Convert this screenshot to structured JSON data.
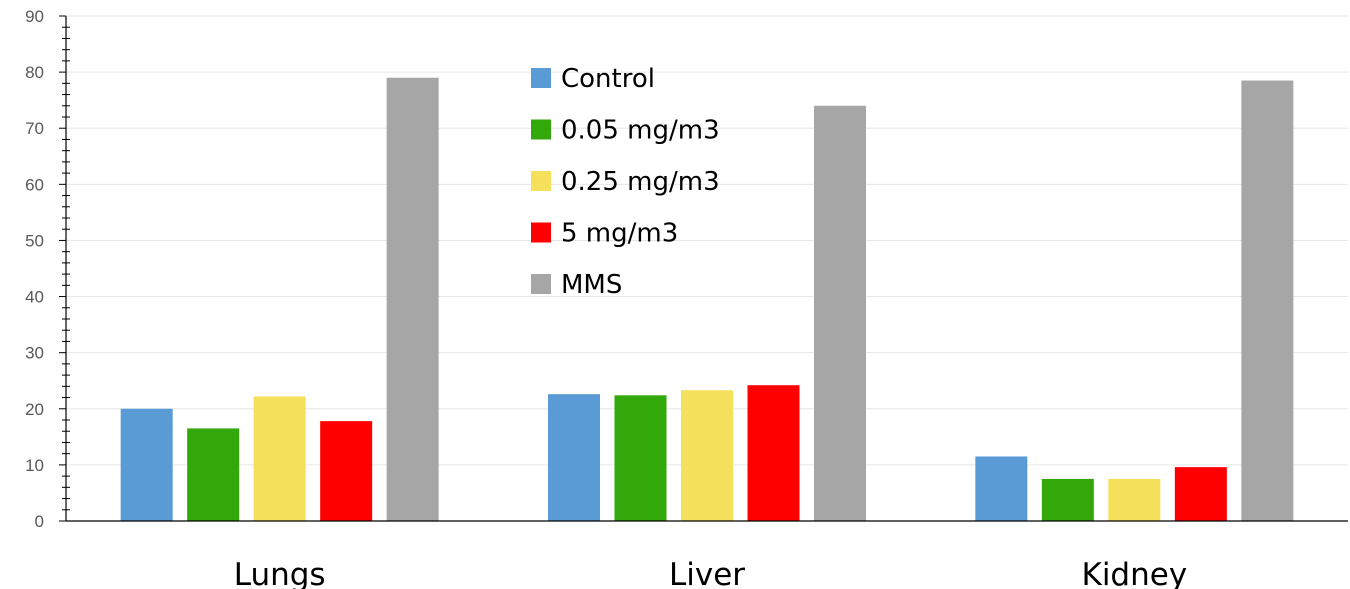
{
  "chart_data": {
    "type": "bar",
    "title": "",
    "xlabel": "",
    "ylabel": "",
    "ylim": [
      0,
      90
    ],
    "yticks": [
      0,
      10,
      20,
      30,
      40,
      50,
      60,
      70,
      80,
      90
    ],
    "categories": [
      "Lungs",
      "Liver",
      "Kidney"
    ],
    "grid": true,
    "legend_position": "top-center",
    "series": [
      {
        "name": "Control",
        "color": "#5b9bd5",
        "values": [
          20,
          22.6,
          11.5
        ]
      },
      {
        "name": "0.05 mg/m3",
        "color": "#33a80b",
        "values": [
          16.5,
          22.4,
          7.5
        ]
      },
      {
        "name": "0.25 mg/m3",
        "color": "#f4e05a",
        "values": [
          22.2,
          23.3,
          7.5
        ]
      },
      {
        "name": "5 mg/m3",
        "color": "#ff0000",
        "values": [
          17.8,
          24.2,
          9.6
        ]
      },
      {
        "name": "MMS",
        "color": "#a6a6a6",
        "values": [
          79,
          74,
          78.5
        ]
      }
    ]
  }
}
